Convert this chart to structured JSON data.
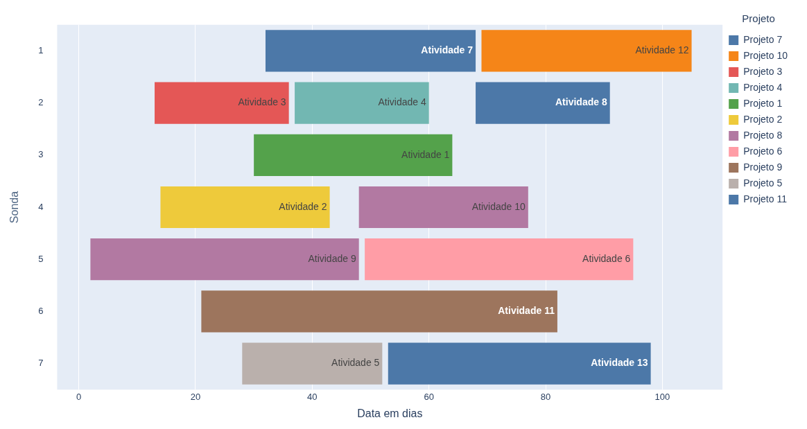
{
  "chart_data": {
    "type": "bar",
    "orientation": "horizontal",
    "xlabel": "Data em dias",
    "ylabel": "Sonda",
    "legend_title": "Projeto",
    "legend": "right",
    "categories": [
      "1",
      "2",
      "3",
      "4",
      "5",
      "6",
      "7"
    ],
    "xlim": [
      -3.7,
      110.3
    ],
    "xticks": [
      0,
      20,
      40,
      60,
      80,
      100
    ],
    "grid": "x",
    "series": [
      {
        "name": "Projeto 7",
        "color": "#4c78a8",
        "base": [
          32,
          68,
          null,
          null,
          null,
          null,
          null
        ],
        "values": [
          36,
          23,
          null,
          null,
          null,
          null,
          null
        ],
        "value_labels": [
          "Atividade 7",
          "Atividade 8",
          null,
          null,
          null,
          null,
          null
        ]
      },
      {
        "name": "Projeto 10",
        "color": "#f58518",
        "base": [
          69,
          null,
          null,
          null,
          null,
          null,
          null
        ],
        "values": [
          36,
          null,
          null,
          null,
          null,
          null,
          null
        ],
        "value_labels": [
          "Atividade 12",
          null,
          null,
          null,
          null,
          null,
          null
        ]
      },
      {
        "name": "Projeto 3",
        "color": "#e45756",
        "base": [
          null,
          13,
          null,
          null,
          null,
          null,
          null
        ],
        "values": [
          null,
          23,
          null,
          null,
          null,
          null,
          null
        ],
        "value_labels": [
          null,
          "Atividade 3",
          null,
          null,
          null,
          null,
          null
        ]
      },
      {
        "name": "Projeto 4",
        "color": "#72b7b2",
        "base": [
          null,
          37,
          null,
          null,
          null,
          null,
          null
        ],
        "values": [
          null,
          23,
          null,
          null,
          null,
          null,
          null
        ],
        "value_labels": [
          null,
          "Atividade 4",
          null,
          null,
          null,
          null,
          null
        ]
      },
      {
        "name": "Projeto 1",
        "color": "#54a24b",
        "base": [
          null,
          null,
          30,
          null,
          null,
          null,
          null
        ],
        "values": [
          null,
          null,
          34,
          null,
          null,
          null,
          null
        ],
        "value_labels": [
          null,
          null,
          "Atividade 1",
          null,
          null,
          null,
          null
        ]
      },
      {
        "name": "Projeto 2",
        "color": "#eeca3b",
        "base": [
          null,
          null,
          null,
          14,
          null,
          null,
          null
        ],
        "values": [
          null,
          null,
          null,
          29,
          null,
          null,
          null
        ],
        "value_labels": [
          null,
          null,
          null,
          "Atividade 2",
          null,
          null,
          null
        ]
      },
      {
        "name": "Projeto 8",
        "color": "#b279a2",
        "base": [
          null,
          null,
          null,
          48,
          2,
          null,
          null
        ],
        "values": [
          null,
          null,
          null,
          29,
          46,
          null,
          null
        ],
        "value_labels": [
          null,
          null,
          null,
          "Atividade 10",
          "Atividade 9",
          null,
          null
        ]
      },
      {
        "name": "Projeto 6",
        "color": "#ff9da6",
        "base": [
          null,
          null,
          null,
          null,
          49,
          null,
          null
        ],
        "values": [
          null,
          null,
          null,
          null,
          46,
          null,
          null
        ],
        "value_labels": [
          null,
          null,
          null,
          null,
          "Atividade 6",
          null,
          null
        ]
      },
      {
        "name": "Projeto 9",
        "color": "#9d755d",
        "base": [
          null,
          null,
          null,
          null,
          null,
          21,
          null
        ],
        "values": [
          null,
          null,
          null,
          null,
          null,
          61,
          null
        ],
        "value_labels": [
          null,
          null,
          null,
          null,
          null,
          "Atividade 11",
          null
        ]
      },
      {
        "name": "Projeto 5",
        "color": "#bab0ac",
        "base": [
          null,
          null,
          null,
          null,
          null,
          null,
          28
        ],
        "values": [
          null,
          null,
          null,
          null,
          null,
          null,
          24
        ],
        "value_labels": [
          null,
          null,
          null,
          null,
          null,
          null,
          "Atividade 5"
        ]
      },
      {
        "name": "Projeto 11",
        "color": "#4c78a8",
        "base": [
          null,
          null,
          null,
          null,
          null,
          null,
          53
        ],
        "values": [
          null,
          null,
          null,
          null,
          null,
          null,
          45
        ],
        "value_labels": [
          null,
          null,
          null,
          null,
          null,
          null,
          "Atividade 13"
        ]
      }
    ]
  }
}
